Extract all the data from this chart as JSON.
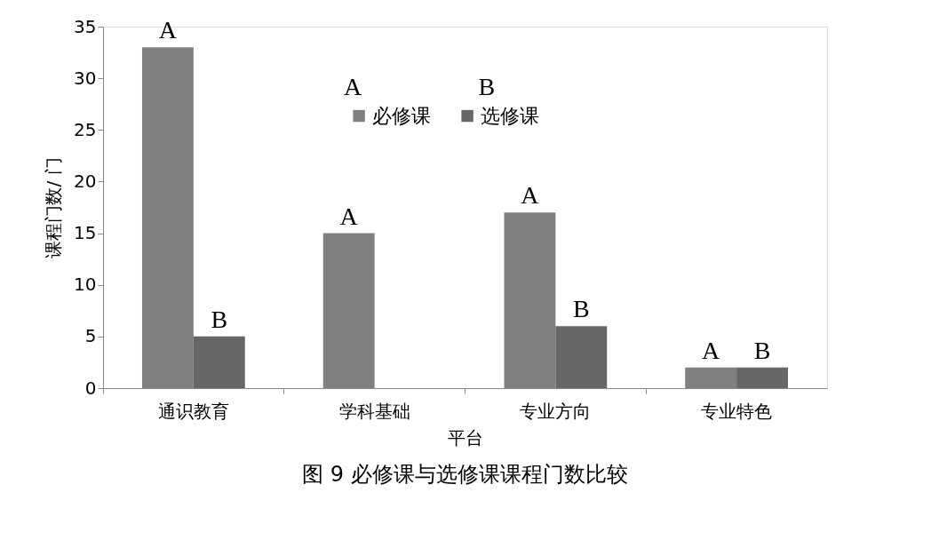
{
  "chart_data": {
    "type": "bar",
    "title": "图 9  必修课与选修课课程门数比较",
    "xlabel": "平台",
    "ylabel": "课程门数/ 门",
    "categories": [
      "通识教育",
      "学科基础",
      "专业方向",
      "专业特色"
    ],
    "series": [
      {
        "name": "必修课",
        "color": "#808080",
        "values": [
          33,
          15,
          17,
          2
        ],
        "value_labels": [
          "A",
          "A",
          "A",
          "A"
        ]
      },
      {
        "name": "选修课",
        "color": "#666666",
        "values": [
          5,
          null,
          6,
          2
        ],
        "value_labels": [
          "B",
          null,
          "B",
          "B"
        ]
      }
    ],
    "ylim": [
      0,
      35
    ],
    "yticks": [
      0,
      5,
      10,
      15,
      20,
      25,
      30,
      35
    ],
    "grid": false,
    "legend": "top",
    "annotations": [
      "A",
      "B"
    ]
  }
}
